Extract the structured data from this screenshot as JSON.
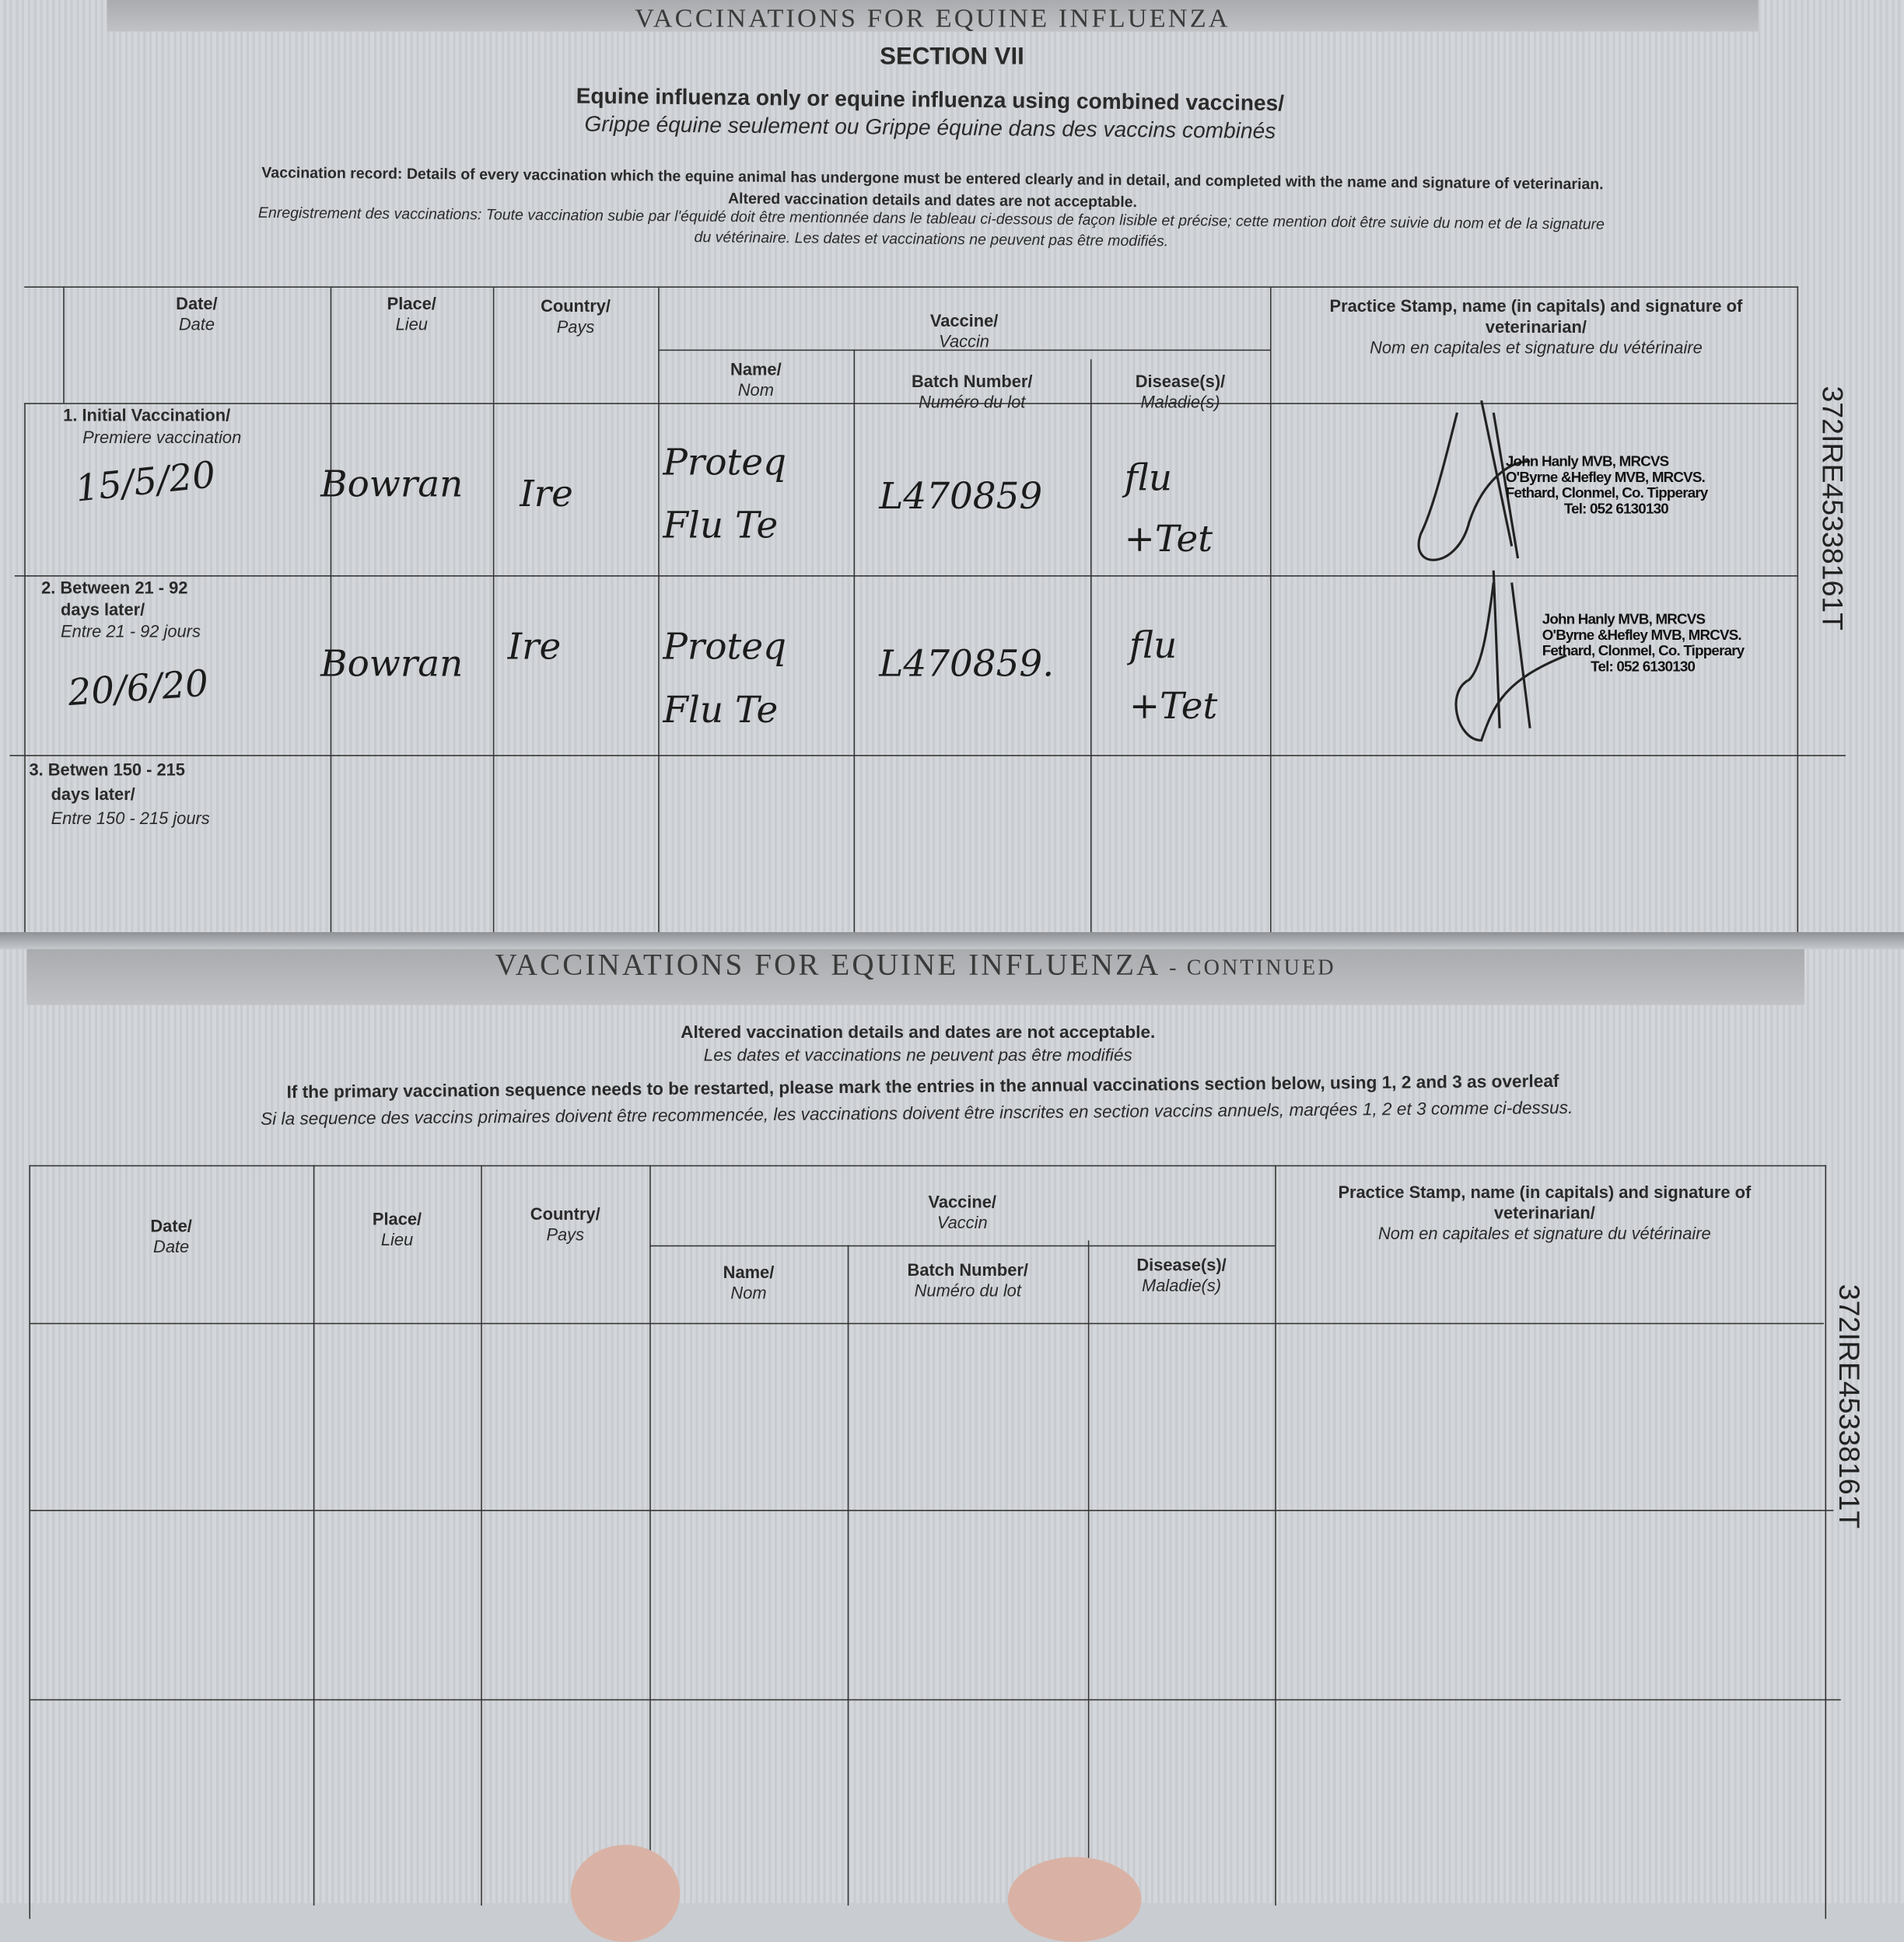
{
  "page1": {
    "banner": "VACCINATIONS FOR EQUINE INFLUENZA",
    "section": "SECTION VII",
    "subtitle_en": "Equine influenza only or equine influenza using combined vaccines/",
    "subtitle_fr": "Grippe équine seulement ou Grippe équine dans des vaccins combinés",
    "note_en": "Vaccination record: Details of every vaccination which the equine animal has undergone must be entered clearly and in detail, and completed with the name and signature of veterinarian.",
    "note_en2": "Altered vaccination details and dates are not acceptable.",
    "note_fr": "Enregistrement des vaccinations: Toute vaccination subie par l'équidé doit être mentionnée dans le tableau ci-dessous de façon lisible et précise; cette mention doit être suivie du nom et de la signature",
    "note_fr2": "du vétérinaire. Les dates et vaccinations ne peuvent pas être modifiés.",
    "id_number": "372IRE45338161T",
    "rows": [
      {
        "label_en": "1. Initial Vaccination/",
        "label_fr": "Premiere vaccination",
        "date": "15/5/20",
        "place": "Bowran",
        "country": "Ire",
        "name": "Proteq Flu Te",
        "batch": "L470859",
        "disease": "flu +Tet",
        "stamp": [
          "John Hanly MVB, MRCVS",
          "O'Byrne &Hefley MVB, MRCVS.",
          "Fethard, Clonmel, Co. Tipperary",
          "Tel: 052 6130130"
        ]
      },
      {
        "label_en": "2. Between 21 - 92",
        "label_en2": "days later/",
        "label_fr": "Entre 21 - 92 jours",
        "date": "20/6/20",
        "place": "Bowran",
        "country": "Ire",
        "name": "Proteq Flu Te",
        "batch": "L470859.",
        "disease": "flu +Tet",
        "stamp": [
          "John Hanly MVB, MRCVS",
          "O'Byrne &Hefley MVB, MRCVS.",
          "Fethard, Clonmel, Co. Tipperary",
          "Tel: 052 6130130"
        ]
      },
      {
        "label_en": "3. Betwen 150 - 215",
        "label_en2": "days later/",
        "label_fr": "Entre 150 - 215 jours"
      }
    ]
  },
  "headers": {
    "date_en": "Date/",
    "date_fr": "Date",
    "place_en": "Place/",
    "place_fr": "Lieu",
    "country_en": "Country/",
    "country_fr": "Pays",
    "vaccine_en": "Vaccine/",
    "vaccine_fr": "Vaccin",
    "name_en": "Name/",
    "name_fr": "Nom",
    "batch_en": "Batch Number/",
    "batch_fr": "Numéro du lot",
    "disease_en": "Disease(s)/",
    "disease_fr": "Maladie(s)",
    "stamp_en": "Practice Stamp, name (in capitals) and signature of veterinarian/",
    "stamp_fr": "Nom en capitales et signature du vétérinaire"
  },
  "page2": {
    "banner": "VACCINATIONS FOR EQUINE INFLUENZA",
    "banner_suffix": "- CONTINUED",
    "note1": "Altered vaccination details and dates are not acceptable.",
    "note1_fr": "Les dates et vaccinations ne peuvent pas être modifiés",
    "note2": "If the primary vaccination sequence needs to be restarted, please mark the entries in the annual vaccinations section below, using 1, 2 and 3 as overleaf",
    "note2_fr": "Si la sequence des vaccins primaires doivent être recommencée, les vaccinations doivent être inscrites en section vaccins annuels, marqées 1, 2 et 3 comme ci-dessus.",
    "id_number": "372IRE45338161T"
  }
}
